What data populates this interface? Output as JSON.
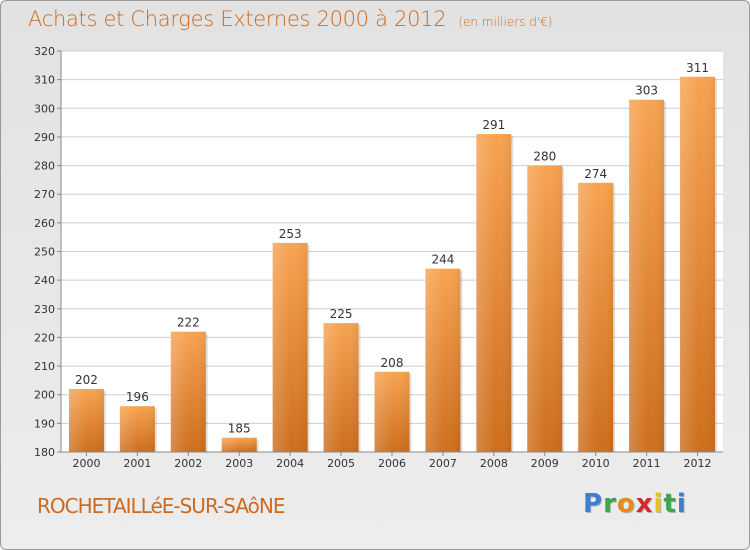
{
  "header": {
    "title": "Achats et Charges Externes 2000 à 2012",
    "subtitle": "(en milliers d'€)"
  },
  "footer": {
    "commune": "ROCHETAILLéE-SUR-SAôNE",
    "logo_letters": [
      "P",
      "r",
      "o",
      "x",
      "i",
      "t",
      "i"
    ],
    "logo_colors": [
      "#3a7fd0",
      "#3aa84a",
      "#e88a1c",
      "#d22a2a",
      "#e8c21c",
      "#3aa84a",
      "#3a7fd0"
    ]
  },
  "chart_data": {
    "type": "bar",
    "categories": [
      "2000",
      "2001",
      "2002",
      "2003",
      "2004",
      "2005",
      "2006",
      "2007",
      "2008",
      "2009",
      "2010",
      "2011",
      "2012"
    ],
    "values": [
      202,
      196,
      222,
      185,
      253,
      225,
      208,
      244,
      291,
      280,
      274,
      303,
      311
    ],
    "ylim": [
      180,
      320
    ],
    "yticks": [
      180,
      190,
      200,
      210,
      220,
      230,
      240,
      250,
      260,
      270,
      280,
      290,
      300,
      310,
      320
    ],
    "grid": true,
    "bar_color_top": "#f7a351",
    "bar_color_bottom": "#cd6e1d",
    "text_color": "#cc6a1f"
  }
}
